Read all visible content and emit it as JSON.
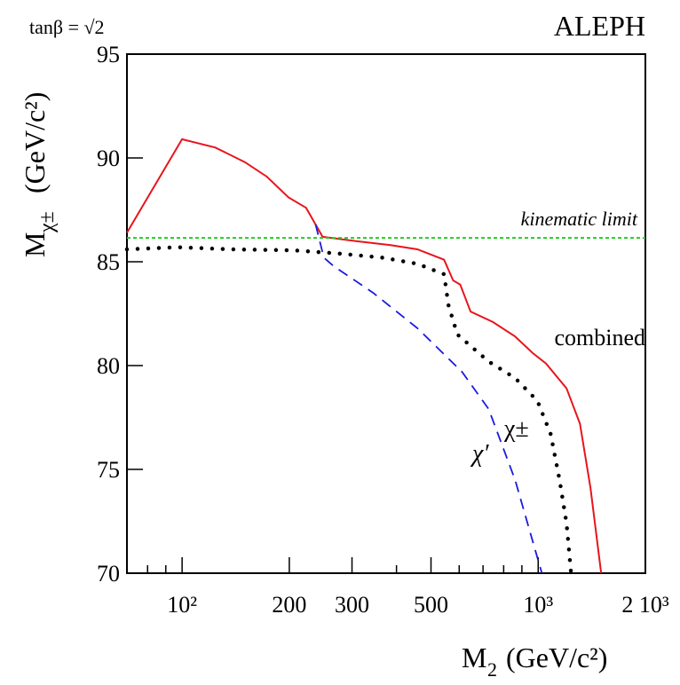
{
  "chart_data": {
    "type": "line",
    "title_left": "tanβ = √2",
    "title_right": "ALEPH",
    "ylabel": {
      "main": "M",
      "sub": "χ±",
      "unit": "(GeV/c²)"
    },
    "xlabel": {
      "main": "M",
      "sub": "2",
      "unit": "(GeV/c²)"
    },
    "xscale": "log",
    "xlim": [
      70,
      2000
    ],
    "ylim": [
      70,
      95
    ],
    "yticks": [
      70,
      75,
      80,
      85,
      90,
      95
    ],
    "xticks": [
      {
        "value": 100,
        "label": "10²"
      },
      200,
      300,
      500,
      {
        "value": 1000,
        "label": "10³"
      },
      {
        "value": 2000,
        "label": "2 10³"
      }
    ],
    "xminorticks": [
      80,
      90,
      400,
      600,
      700,
      800,
      900
    ],
    "series": [
      {
        "name": "combined",
        "color": "#e8141c",
        "style": "solid",
        "x": [
          70,
          100,
          124,
          150,
          173,
          199,
          223,
          248,
          306,
          385,
          458,
          544,
          577,
          604,
          646,
          746,
          861,
          966,
          1052,
          1201,
          1310,
          1403,
          1503
        ],
        "values": [
          86.4,
          90.9,
          90.5,
          89.8,
          89.1,
          88.1,
          87.6,
          86.2,
          86.0,
          85.8,
          85.6,
          85.1,
          84.1,
          83.9,
          82.6,
          82.1,
          81.4,
          80.6,
          80.1,
          78.9,
          77.2,
          74.1,
          70
        ]
      },
      {
        "name": "χ±",
        "color": "#000000",
        "style": "dotted",
        "x": [
          70,
          97,
          137,
          205,
          273,
          364,
          458,
          544,
          560,
          593,
          725,
          861,
          995,
          1084,
          1148,
          1201,
          1237
        ],
        "values": [
          85.6,
          85.7,
          85.6,
          85.55,
          85.4,
          85.2,
          84.9,
          84.4,
          82.9,
          81.5,
          80.2,
          79.4,
          78.3,
          76.7,
          74.5,
          72.4,
          70
        ]
      },
      {
        "name": "χ′",
        "color": "#1a1adc",
        "style": "dashed",
        "x": [
          237,
          250,
          266,
          344,
          458,
          611,
          726,
          861,
          1024
        ],
        "values": [
          86.8,
          85.2,
          84.8,
          83.5,
          81.8,
          79.7,
          77.9,
          74.5,
          70
        ]
      },
      {
        "name": "kinematic limit",
        "color": "#22cc22",
        "style": "shortdash",
        "x": [
          70,
          2000
        ],
        "values": [
          86.15,
          86.15
        ]
      }
    ]
  }
}
